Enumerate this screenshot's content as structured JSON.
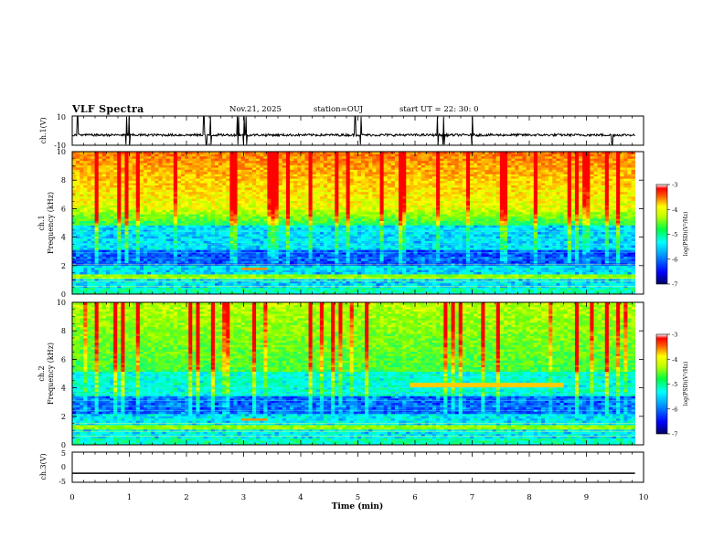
{
  "header": {
    "title": "VLF Spectra",
    "date": "Nov.21, 2025",
    "station": "station=OUJ",
    "start_ut": "start  UT  =   22: 30: 0"
  },
  "chart_data": [
    {
      "type": "line",
      "panel": "ch1-waveform",
      "ylabel": "ch.1(V)",
      "ylim": [
        -10,
        10
      ],
      "yticks": [
        "10",
        "-10"
      ],
      "xlim": [
        0,
        10
      ],
      "baseline": -3,
      "signal_extent_min": 9.85
    },
    {
      "type": "heatmap",
      "panel": "ch1-spectrogram",
      "ylabel": "ch.1\nFrequency (kHz)",
      "ylim": [
        0,
        10
      ],
      "yticks": [
        "0",
        "2",
        "4",
        "6",
        "8",
        "10"
      ],
      "xlim": [
        0,
        10
      ],
      "signal_extent_min": 9.85,
      "colorbar": {
        "label": "log(PSD)(V²/Hz)",
        "range": [
          -7,
          -3
        ],
        "ticks": [
          "-3",
          "-4",
          "-5",
          "-6",
          "-7"
        ]
      }
    },
    {
      "type": "heatmap",
      "panel": "ch2-spectrogram",
      "ylabel": "ch.2\nFrequency (kHz)",
      "ylim": [
        0,
        10
      ],
      "yticks": [
        "0",
        "2",
        "4",
        "6",
        "8",
        "10"
      ],
      "xlim": [
        0,
        10
      ],
      "signal_extent_min": 9.85,
      "colorbar": {
        "label": "log(PSD)(V²/Hz)",
        "range": [
          -7,
          -3
        ],
        "ticks": [
          "-3",
          "-4",
          "-5",
          "-6",
          "-7"
        ]
      }
    },
    {
      "type": "line",
      "panel": "ch3-waveform",
      "ylabel": "ch.3(V)",
      "ylim": [
        -5,
        5
      ],
      "yticks": [
        "5",
        "0",
        "-5"
      ],
      "xlim": [
        0,
        10
      ],
      "xlabel": "Time (min)",
      "xticks": [
        "0",
        "1",
        "2",
        "3",
        "4",
        "5",
        "6",
        "7",
        "8",
        "9",
        "10"
      ],
      "x": [
        0,
        9.85
      ],
      "y": [
        -2,
        -2
      ]
    }
  ],
  "colors": {
    "colormap": [
      "#000080",
      "#0000ff",
      "#0080ff",
      "#00ffff",
      "#00ff80",
      "#80ff00",
      "#ffff00",
      "#ff8000",
      "#ff0000",
      "#ffffff"
    ],
    "axes": "#000000"
  }
}
